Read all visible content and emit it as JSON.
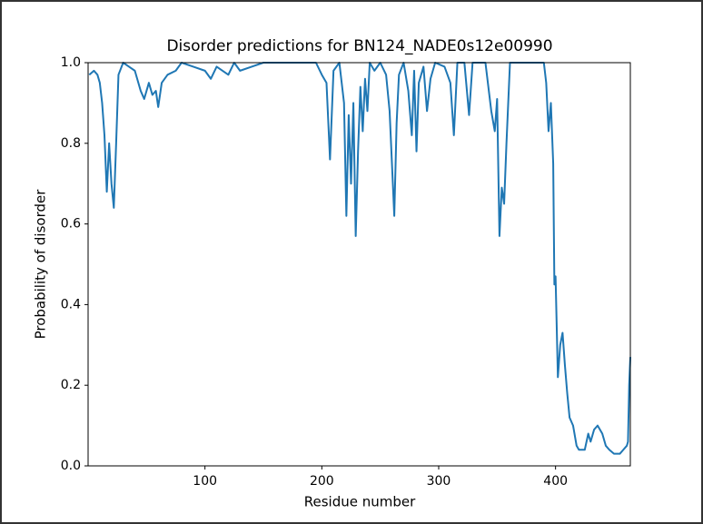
{
  "chart_data": {
    "type": "line",
    "title": "Disorder predictions for BN124_NADE0s12e00990",
    "xlabel": "Residue number",
    "ylabel": "Probability of disorder",
    "color": "#1f77b4",
    "xlim": [
      0,
      464
    ],
    "ylim": [
      0,
      1
    ],
    "xticks": [
      100,
      200,
      300,
      400
    ],
    "yticks": [
      {
        "value": 0,
        "label": "0.0"
      },
      0.2,
      0.4,
      0.6,
      0.8,
      {
        "value": 1,
        "label": "1.0"
      }
    ],
    "x": [
      1,
      5,
      8,
      10,
      12,
      14,
      16,
      18,
      20,
      22,
      24,
      26,
      30,
      35,
      40,
      45,
      48,
      52,
      55,
      58,
      60,
      63,
      68,
      75,
      80,
      90,
      100,
      105,
      110,
      120,
      125,
      130,
      140,
      150,
      160,
      180,
      195,
      200,
      204,
      207,
      210,
      215,
      219,
      221,
      223,
      225,
      227,
      229,
      231,
      233,
      235,
      237,
      239,
      241,
      245,
      250,
      255,
      258,
      260,
      262,
      264,
      266,
      270,
      274,
      277,
      279,
      281,
      283,
      287,
      290,
      293,
      297,
      305,
      310,
      313,
      316,
      322,
      326,
      329,
      340,
      345,
      348,
      350,
      352,
      354,
      356,
      358,
      361,
      370,
      380,
      390,
      392,
      394,
      396,
      398,
      399,
      400,
      402,
      404,
      406,
      408,
      410,
      412,
      415,
      418,
      420,
      425,
      428,
      430,
      433,
      436,
      440,
      443,
      446,
      450,
      455,
      458,
      461,
      462,
      463,
      464
    ],
    "values": [
      0.97,
      0.98,
      0.97,
      0.95,
      0.9,
      0.82,
      0.68,
      0.8,
      0.7,
      0.64,
      0.8,
      0.97,
      1.0,
      0.99,
      0.98,
      0.93,
      0.91,
      0.95,
      0.92,
      0.93,
      0.89,
      0.95,
      0.97,
      0.98,
      1.0,
      0.99,
      0.98,
      0.96,
      0.99,
      0.97,
      1.0,
      0.98,
      0.99,
      1.0,
      1.0,
      1.0,
      1.0,
      0.97,
      0.95,
      0.76,
      0.98,
      1.0,
      0.9,
      0.62,
      0.87,
      0.7,
      0.9,
      0.57,
      0.78,
      0.94,
      0.83,
      0.96,
      0.88,
      1.0,
      0.98,
      1.0,
      0.97,
      0.88,
      0.75,
      0.62,
      0.85,
      0.97,
      1.0,
      0.93,
      0.82,
      0.98,
      0.78,
      0.95,
      0.99,
      0.88,
      0.96,
      1.0,
      0.99,
      0.95,
      0.82,
      1.0,
      1.0,
      0.87,
      1.0,
      1.0,
      0.88,
      0.83,
      0.91,
      0.57,
      0.69,
      0.65,
      0.8,
      1.0,
      1.0,
      1.0,
      1.0,
      0.95,
      0.83,
      0.9,
      0.75,
      0.45,
      0.47,
      0.22,
      0.3,
      0.33,
      0.25,
      0.18,
      0.12,
      0.1,
      0.05,
      0.04,
      0.04,
      0.08,
      0.06,
      0.09,
      0.1,
      0.08,
      0.05,
      0.04,
      0.03,
      0.03,
      0.04,
      0.05,
      0.06,
      0.2,
      0.27
    ]
  }
}
